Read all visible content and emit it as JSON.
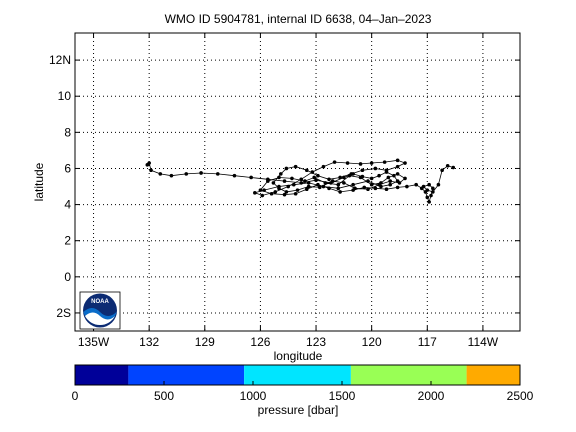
{
  "chart_data": {
    "type": "scatter",
    "title": "WMO ID 5904781, internal ID 6638, 04–Jan–2023",
    "xlabel": "longitude",
    "ylabel": "latitude",
    "xlim": [
      -136,
      -112
    ],
    "ylim": [
      -3,
      13.5
    ],
    "grid": true,
    "x_ticks": [
      {
        "value": -135,
        "label": "135W"
      },
      {
        "value": -132,
        "label": "132"
      },
      {
        "value": -129,
        "label": "129"
      },
      {
        "value": -126,
        "label": "126"
      },
      {
        "value": -123,
        "label": "123"
      },
      {
        "value": -120,
        "label": "120"
      },
      {
        "value": -117,
        "label": "117"
      },
      {
        "value": -114,
        "label": "114W"
      }
    ],
    "y_ticks": [
      {
        "value": -2,
        "label": "2S"
      },
      {
        "value": 0,
        "label": "0"
      },
      {
        "value": 2,
        "label": "2"
      },
      {
        "value": 4,
        "label": "4"
      },
      {
        "value": 6,
        "label": "6"
      },
      {
        "value": 8,
        "label": "8"
      },
      {
        "value": 10,
        "label": "10"
      },
      {
        "value": 12,
        "label": "12N"
      }
    ],
    "track": [
      [
        -132.1,
        6.2
      ],
      [
        -132.0,
        6.3
      ],
      [
        -131.9,
        5.9
      ],
      [
        -131.4,
        5.7
      ],
      [
        -130.8,
        5.6
      ],
      [
        -130.0,
        5.7
      ],
      [
        -129.2,
        5.75
      ],
      [
        -128.3,
        5.7
      ],
      [
        -127.4,
        5.6
      ],
      [
        -126.5,
        5.5
      ],
      [
        -125.6,
        5.4
      ],
      [
        -124.7,
        5.3
      ],
      [
        -123.8,
        5.2
      ],
      [
        -123.0,
        5.35
      ],
      [
        -122.2,
        5.2
      ],
      [
        -121.5,
        5.5
      ],
      [
        -121.0,
        5.7
      ],
      [
        -120.5,
        5.55
      ],
      [
        -120.0,
        5.45
      ],
      [
        -119.6,
        5.6
      ],
      [
        -119.2,
        5.8
      ],
      [
        -118.8,
        5.6
      ],
      [
        -118.6,
        5.3
      ],
      [
        -119.0,
        5.1
      ],
      [
        -119.5,
        5.0
      ],
      [
        -120.2,
        5.3
      ],
      [
        -121.0,
        5.1
      ],
      [
        -121.8,
        4.9
      ],
      [
        -122.6,
        5.0
      ],
      [
        -123.4,
        5.2
      ],
      [
        -124.2,
        5.1
      ],
      [
        -125.0,
        5.0
      ],
      [
        -125.8,
        4.8
      ],
      [
        -126.3,
        4.65
      ],
      [
        -125.9,
        4.5
      ],
      [
        -125.2,
        4.7
      ],
      [
        -124.5,
        5.0
      ],
      [
        -123.8,
        5.4
      ],
      [
        -123.2,
        5.8
      ],
      [
        -122.6,
        6.1
      ],
      [
        -122.0,
        6.35
      ],
      [
        -121.3,
        6.3
      ],
      [
        -120.6,
        6.25
      ],
      [
        -120.0,
        6.3
      ],
      [
        -119.3,
        6.35
      ],
      [
        -118.6,
        6.45
      ],
      [
        -118.2,
        6.3
      ],
      [
        -118.6,
        6.1
      ],
      [
        -119.2,
        5.9
      ],
      [
        -119.8,
        6.0
      ],
      [
        -120.5,
        5.9
      ],
      [
        -121.1,
        5.7
      ],
      [
        -121.7,
        5.5
      ],
      [
        -122.3,
        5.4
      ],
      [
        -122.9,
        5.6
      ],
      [
        -123.5,
        5.9
      ],
      [
        -124.1,
        6.1
      ],
      [
        -124.6,
        6.0
      ],
      [
        -124.9,
        5.7
      ],
      [
        -125.3,
        5.2
      ],
      [
        -125.0,
        4.9
      ],
      [
        -124.6,
        4.7
      ],
      [
        -124.0,
        4.8
      ],
      [
        -123.4,
        5.0
      ],
      [
        -122.8,
        4.95
      ],
      [
        -122.1,
        5.3
      ],
      [
        -121.5,
        5.2
      ],
      [
        -120.9,
        4.9
      ],
      [
        -120.2,
        4.85
      ],
      [
        -119.6,
        5.1
      ],
      [
        -119.0,
        5.3
      ],
      [
        -118.5,
        5.2
      ],
      [
        -118.2,
        5.45
      ],
      [
        -118.6,
        5.7
      ],
      [
        -119.1,
        5.5
      ],
      [
        -119.5,
        5.2
      ],
      [
        -120.0,
        5.1
      ],
      [
        -120.6,
        5.5
      ],
      [
        -121.2,
        5.6
      ],
      [
        -121.8,
        5.1
      ],
      [
        -122.5,
        5.2
      ],
      [
        -123.1,
        5.5
      ],
      [
        -123.6,
        5.3
      ],
      [
        -124.3,
        5.45
      ],
      [
        -125.0,
        5.5
      ],
      [
        -125.6,
        5.3
      ],
      [
        -126.0,
        4.8
      ],
      [
        -125.4,
        4.6
      ],
      [
        -124.7,
        4.55
      ],
      [
        -124.1,
        4.6
      ],
      [
        -123.5,
        4.85
      ],
      [
        -122.9,
        5.1
      ],
      [
        -122.3,
        4.9
      ],
      [
        -121.7,
        4.7
      ],
      [
        -121.0,
        4.8
      ],
      [
        -120.4,
        4.95
      ],
      [
        -119.8,
        4.9
      ],
      [
        -119.2,
        4.85
      ],
      [
        -118.6,
        4.95
      ],
      [
        -118.1,
        5.0
      ],
      [
        -117.6,
        5.1
      ],
      [
        -117.3,
        4.9
      ],
      [
        -117.1,
        4.7
      ],
      [
        -117.0,
        4.4
      ],
      [
        -116.9,
        4.15
      ],
      [
        -116.8,
        4.5
      ],
      [
        -116.7,
        4.9
      ],
      [
        -116.9,
        5.1
      ],
      [
        -117.2,
        5.0
      ],
      [
        -117.0,
        4.8
      ],
      [
        -116.7,
        4.7
      ],
      [
        -116.4,
        5.1
      ],
      [
        -116.2,
        5.9
      ],
      [
        -115.9,
        6.15
      ],
      [
        -115.6,
        6.05
      ]
    ],
    "colorbar": {
      "label": "pressure [dbar]",
      "ticks": [
        0,
        500,
        1000,
        1500,
        2000,
        2500
      ],
      "range": [
        0,
        2500
      ],
      "segments": [
        {
          "from": 0,
          "to": 300,
          "color": "#000099"
        },
        {
          "from": 300,
          "to": 950,
          "color": "#0044ff"
        },
        {
          "from": 950,
          "to": 1550,
          "color": "#00e5ff"
        },
        {
          "from": 1550,
          "to": 2200,
          "color": "#99ff55"
        },
        {
          "from": 2200,
          "to": 2500,
          "color": "#ffaa00"
        }
      ]
    },
    "logo_text": "NOAA",
    "colors": {
      "track": "#000000",
      "grid": "#000000",
      "logo_blue": "#0a6cc9",
      "logo_navy": "#0c2b73"
    }
  }
}
